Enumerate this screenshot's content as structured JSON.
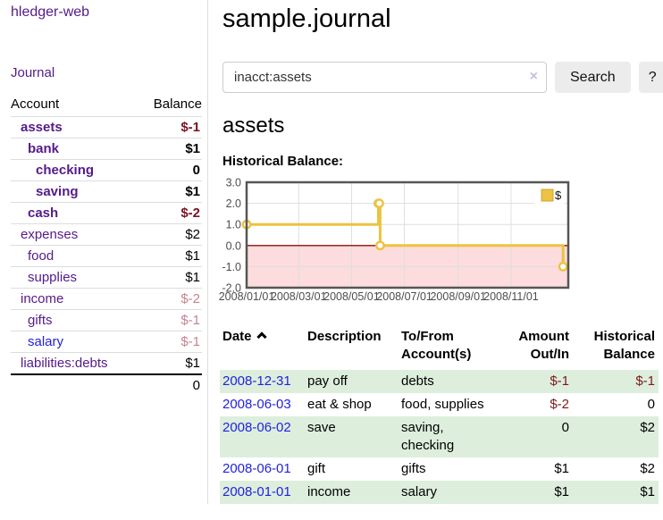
{
  "app": {
    "brand": "hledger-web",
    "nav_journal": "Journal"
  },
  "colors": {
    "link_purple": "#551a8b",
    "link_blue": "#2222dd",
    "neg_strong": "#7d1122",
    "neg_soft": "#c4848e",
    "neg_table": "#7d1a1a",
    "stripe_green": "#ddeedd",
    "button_bg": "#ececec",
    "chart_yellow": "#edc240",
    "chart_negative_fill": "#fcdcdc",
    "chart_zero_line": "#8b1111",
    "chart_border": "#565656"
  },
  "sidebar": {
    "accounts_header": {
      "account": "Account",
      "balance": "Balance"
    },
    "accounts": [
      {
        "name": "assets",
        "indent": 1,
        "bold": true,
        "balance": "$-1",
        "balance_style": "neg-strong"
      },
      {
        "name": "bank",
        "indent": 2,
        "bold": true,
        "balance": "$1",
        "balance_style": "pos"
      },
      {
        "name": "checking",
        "indent": 3,
        "bold": true,
        "balance": "0",
        "balance_style": "pos"
      },
      {
        "name": "saving",
        "indent": 3,
        "bold": true,
        "balance": "$1",
        "balance_style": "pos"
      },
      {
        "name": "cash",
        "indent": 2,
        "bold": true,
        "balance": "$-2",
        "balance_style": "neg-strong"
      },
      {
        "name": "expenses",
        "indent": 1,
        "bold": false,
        "balance": "$2",
        "balance_style": "pos"
      },
      {
        "name": "food",
        "indent": 2,
        "bold": false,
        "balance": "$1",
        "balance_style": "pos"
      },
      {
        "name": "supplies",
        "indent": 2,
        "bold": false,
        "balance": "$1",
        "balance_style": "pos"
      },
      {
        "name": "income",
        "indent": 1,
        "bold": false,
        "balance": "$-2",
        "balance_style": "neg-soft"
      },
      {
        "name": "gifts",
        "indent": 2,
        "bold": false,
        "balance": "$-1",
        "balance_style": "neg-soft"
      },
      {
        "name": "salary",
        "indent": 2,
        "bold": false,
        "balance": "$-1",
        "balance_style": "neg-soft",
        "link_color": "blue"
      },
      {
        "name": "liabilities:debts",
        "indent": 1,
        "bold": false,
        "balance": "$1",
        "balance_style": "pos"
      }
    ],
    "total": "0"
  },
  "header": {
    "title": "sample.journal"
  },
  "search": {
    "value": "inacct:assets",
    "clear_icon": "×",
    "button_label": "Search",
    "help_label": "?"
  },
  "account_page": {
    "title": "assets",
    "chart_label": "Historical Balance:"
  },
  "chart_data": {
    "type": "line",
    "step": true,
    "title": "Historical Balance",
    "series": [
      {
        "name": "$",
        "color": "#edc240",
        "points": [
          [
            "2008-01-01",
            1
          ],
          [
            "2008-06-01",
            2
          ],
          [
            "2008-06-02",
            2
          ],
          [
            "2008-06-03",
            0
          ],
          [
            "2008-12-31",
            -1
          ]
        ]
      }
    ],
    "x_ticks": [
      "2008/01/01",
      "2008/03/01",
      "2008/05/01",
      "2008/07/01",
      "2008/09/01",
      "2008/11/01"
    ],
    "y_ticks": [
      3.0,
      2.0,
      1.0,
      0.0,
      -1.0,
      -2.0
    ],
    "ylim": [
      -2,
      3
    ],
    "x_range": [
      "2008-01-01",
      "2009-01-06"
    ],
    "grid": true,
    "legend": {
      "label": "$",
      "position": "top-right"
    },
    "negative_fill": "#fcdcdc",
    "zero_line": "#8b1111",
    "border": "#565656"
  },
  "register": {
    "columns": [
      "Date",
      "Description",
      "To/From Account(s)",
      "Amount Out/In",
      "Historical Balance"
    ],
    "sort": "ascending",
    "rows": [
      {
        "date": "2008-12-31",
        "description": "pay off",
        "accounts": "debts",
        "amount": "$-1",
        "amount_neg": true,
        "balance": "$-1",
        "balance_neg": true
      },
      {
        "date": "2008-06-03",
        "description": "eat & shop",
        "accounts": "food, supplies",
        "amount": "$-2",
        "amount_neg": true,
        "balance": "0",
        "balance_neg": false
      },
      {
        "date": "2008-06-02",
        "description": "save",
        "accounts": "saving, checking",
        "amount": "0",
        "amount_neg": false,
        "balance": "$2",
        "balance_neg": false
      },
      {
        "date": "2008-06-01",
        "description": "gift",
        "accounts": "gifts",
        "amount": "$1",
        "amount_neg": false,
        "balance": "$2",
        "balance_neg": false
      },
      {
        "date": "2008-01-01",
        "description": "income",
        "accounts": "salary",
        "amount": "$1",
        "amount_neg": false,
        "balance": "$1",
        "balance_neg": false
      }
    ]
  }
}
